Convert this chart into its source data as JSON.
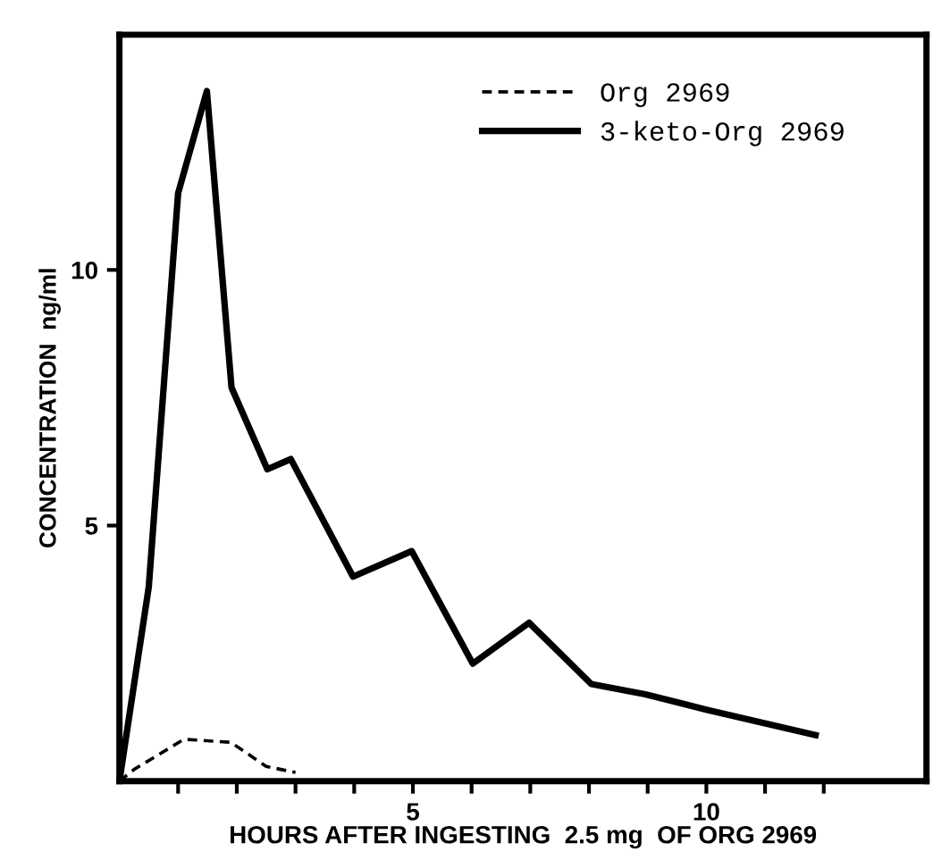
{
  "chart_data": {
    "type": "line",
    "xlabel": "HOURS AFTER INGESTING  2.5 mg  OF ORG 2969",
    "ylabel": "CONCENTRATION  ng/ml",
    "xlim": [
      0,
      13.75
    ],
    "ylim": [
      0,
      14.6
    ],
    "xticks": [
      {
        "value": 1,
        "label": null
      },
      {
        "value": 2,
        "label": null
      },
      {
        "value": 3,
        "label": null
      },
      {
        "value": 4,
        "label": null
      },
      5,
      {
        "value": 6,
        "label": null
      },
      {
        "value": 7,
        "label": null
      },
      {
        "value": 8,
        "label": null
      },
      {
        "value": 9,
        "label": null
      },
      10,
      {
        "value": 11,
        "label": null
      },
      {
        "value": 12,
        "label": null
      }
    ],
    "yticks": [
      5,
      10
    ],
    "grid": false,
    "legend": "top right",
    "series": [
      {
        "name": "Org 2969",
        "color": "#000000",
        "line_style": "dashed",
        "x": [
          0,
          0.25,
          1.1,
          1.9,
          2.5,
          3.0
        ],
        "values": [
          0,
          0.23,
          0.82,
          0.76,
          0.29,
          0.17
        ]
      },
      {
        "name": "3-keto-Org 2969",
        "color": "#000000",
        "line_style": "solid",
        "x": [
          0,
          0.5,
          1.0,
          1.49,
          1.91,
          2.52,
          2.92,
          3.98,
          4.98,
          6.02,
          6.98,
          8.04,
          8.96,
          10.0,
          11.86
        ],
        "values": [
          0,
          3.8,
          11.5,
          13.5,
          7.7,
          6.1,
          6.3,
          4.0,
          4.5,
          2.3,
          3.1,
          1.9,
          1.7,
          1.4,
          0.9
        ]
      }
    ]
  }
}
